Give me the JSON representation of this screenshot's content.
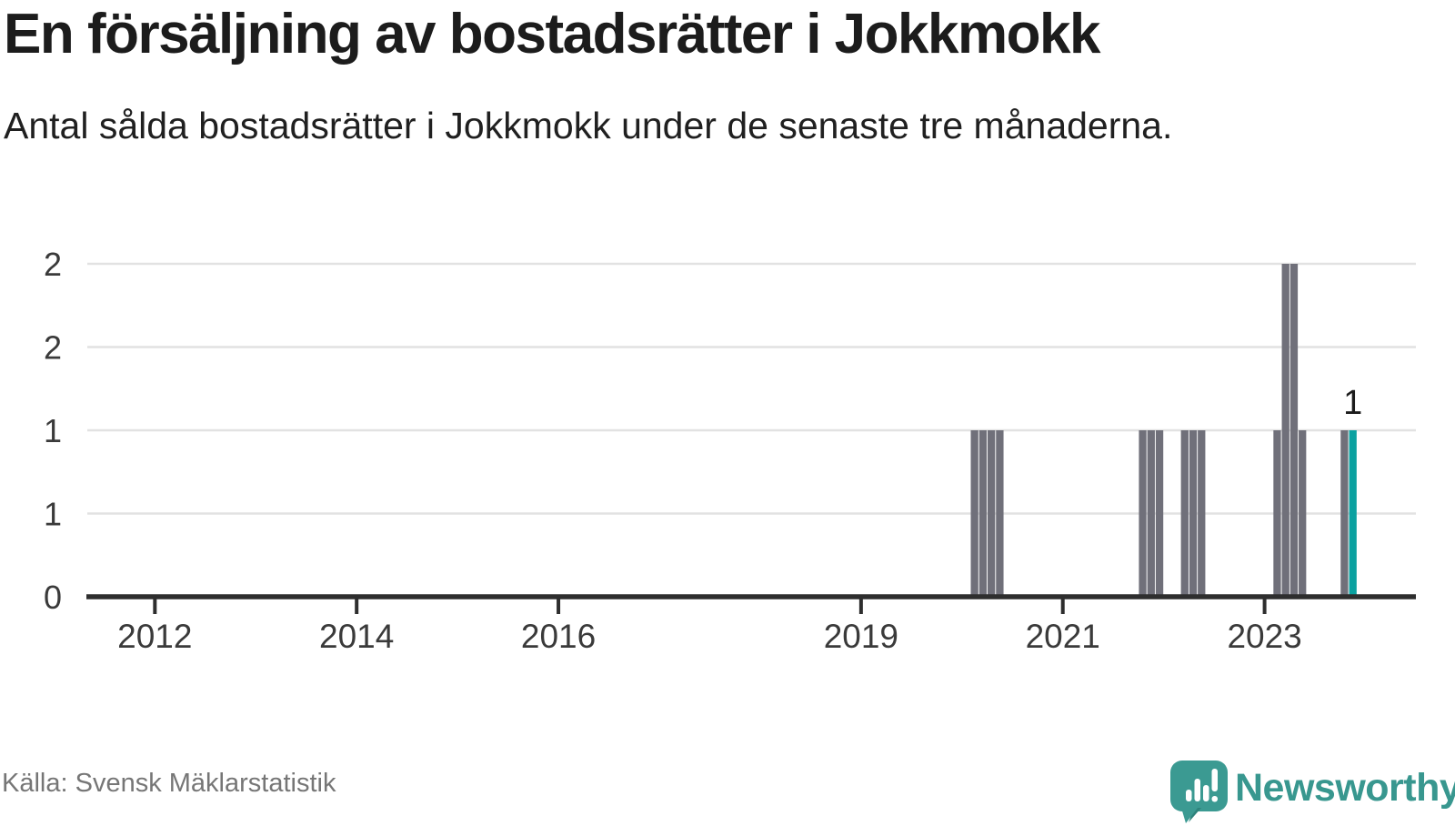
{
  "header": {
    "title": "En försäljning av bostadsrätter i Jokkmokk",
    "subtitle": "Antal sålda bostadsrätter i Jokkmokk under de senaste tre månaderna."
  },
  "chart_data": {
    "type": "bar",
    "title": "En försäljning av bostadsrätter i Jokkmokk",
    "subtitle": "Antal sålda bostadsrätter i Jokkmokk under de senaste tre månaderna.",
    "x_domain": [
      2011.33,
      2024.5
    ],
    "ylim": [
      0,
      2
    ],
    "grid": true,
    "legend": "none",
    "x_ticks": [
      {
        "value": 2012,
        "label": "2012"
      },
      {
        "value": 2014,
        "label": "2014"
      },
      {
        "value": 2016,
        "label": "2016"
      },
      {
        "value": 2019,
        "label": "2019"
      },
      {
        "value": 2021,
        "label": "2021"
      },
      {
        "value": 2023,
        "label": "2023"
      }
    ],
    "y_ticks": [
      {
        "value": 0,
        "label": "0"
      },
      {
        "value": 0.5,
        "label": "1"
      },
      {
        "value": 1,
        "label": "1"
      },
      {
        "value": 1.5,
        "label": "2"
      },
      {
        "value": 2,
        "label": "2"
      }
    ],
    "bars": [
      {
        "month": "2020-02",
        "value": 1
      },
      {
        "month": "2020-03",
        "value": 1
      },
      {
        "month": "2020-04",
        "value": 1
      },
      {
        "month": "2020-05",
        "value": 1
      },
      {
        "month": "2021-10",
        "value": 1
      },
      {
        "month": "2021-11",
        "value": 1
      },
      {
        "month": "2021-12",
        "value": 1
      },
      {
        "month": "2022-03",
        "value": 1
      },
      {
        "month": "2022-04",
        "value": 1
      },
      {
        "month": "2022-05",
        "value": 1
      },
      {
        "month": "2023-02",
        "value": 1
      },
      {
        "month": "2023-03",
        "value": 2
      },
      {
        "month": "2023-04",
        "value": 2
      },
      {
        "month": "2023-05",
        "value": 1
      },
      {
        "month": "2023-10",
        "value": 1
      },
      {
        "month": "2023-11",
        "value": 1,
        "highlight": true,
        "label": "1"
      }
    ],
    "colors": {
      "bar": "#70707a",
      "highlight": "#0aa1a0",
      "grid": "#e2e2e2",
      "axis": "#2e2e2e",
      "tick_label": "#3a3a3a",
      "bar_label": "#1c1c1c"
    }
  },
  "footer": {
    "source": "Källa: Svensk Mäklarstatistik"
  },
  "branding": {
    "wordmark": "Newsworthy",
    "logo_icon": "newsworthy-speech-bubble-bar-chart-icon",
    "color": "#3b9a92"
  }
}
